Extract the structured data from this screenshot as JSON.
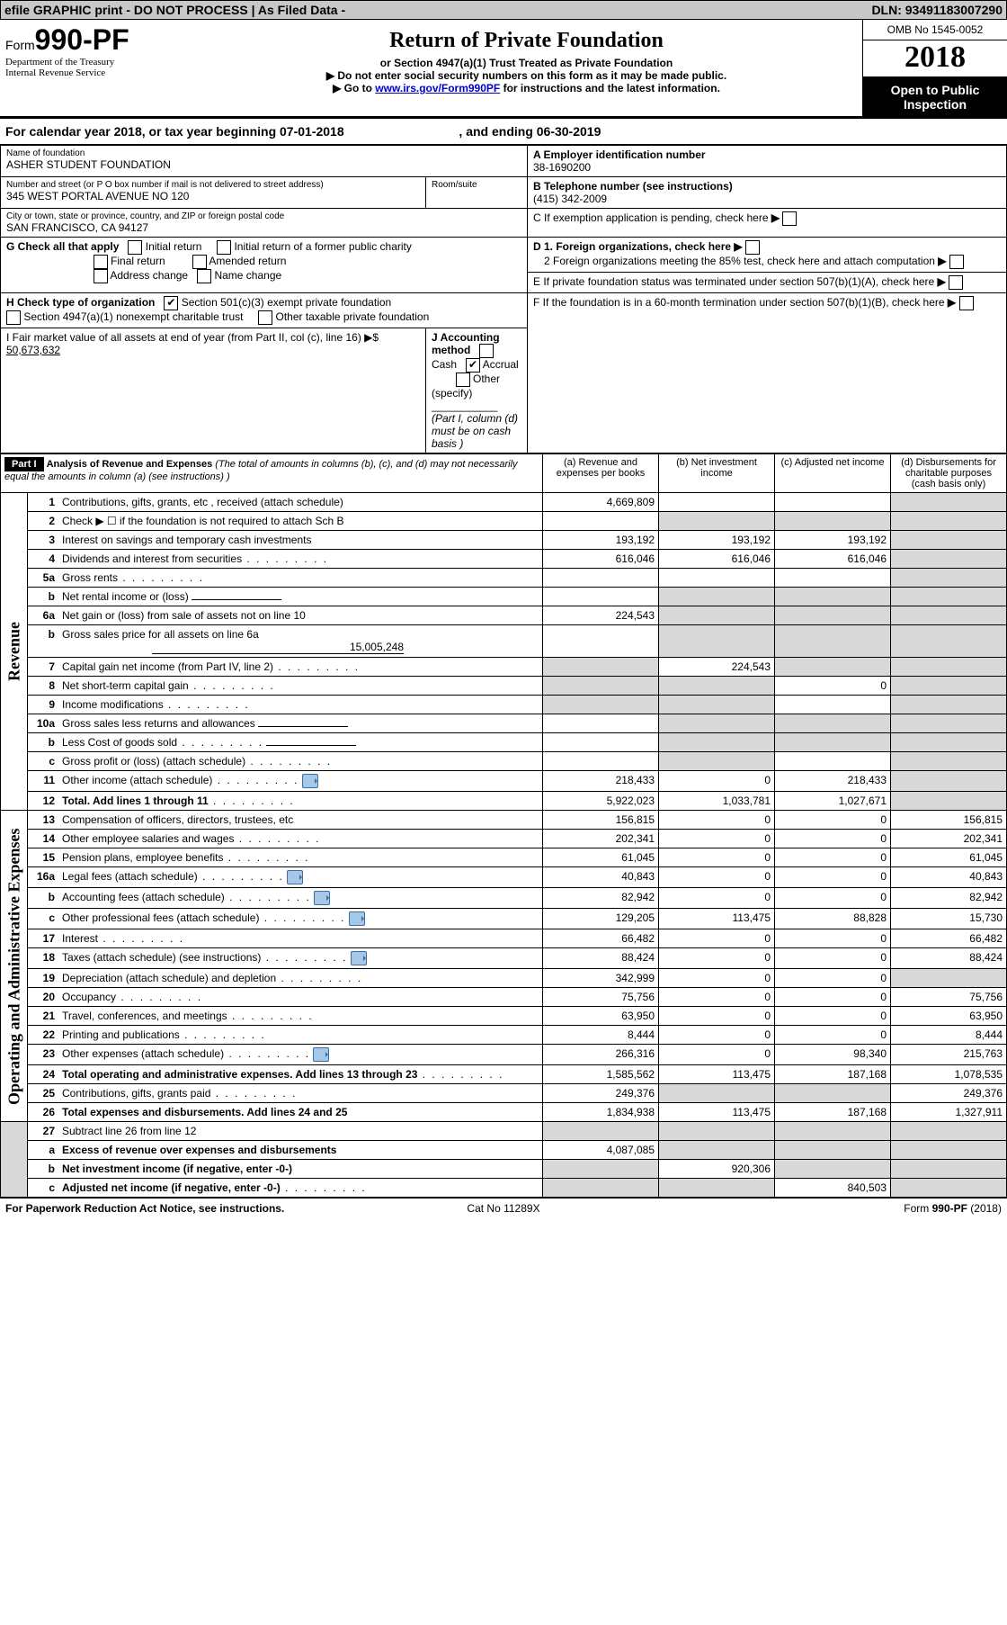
{
  "topbar": {
    "left": "efile GRAPHIC print - DO NOT PROCESS",
    "mid": "As Filed Data -",
    "dln_label": "DLN:",
    "dln": "93491183007290"
  },
  "header": {
    "form_prefix": "Form",
    "form_no": "990-PF",
    "dept1": "Department of the Treasury",
    "dept2": "Internal Revenue Service",
    "title": "Return of Private Foundation",
    "subtitle": "or Section 4947(a)(1) Trust Treated as Private Foundation",
    "note1": "▶ Do not enter social security numbers on this form as it may be made public.",
    "note2_pre": "▶ Go to ",
    "note2_link": "www.irs.gov/Form990PF",
    "note2_post": " for instructions and the latest information.",
    "omb": "OMB No 1545-0052",
    "year": "2018",
    "open1": "Open to Public",
    "open2": "Inspection"
  },
  "calendar": {
    "text_a": "For calendar year 2018, or tax year beginning 07-01-2018",
    "text_b": ", and ending 06-30-2019"
  },
  "entity": {
    "name_label": "Name of foundation",
    "name": "ASHER STUDENT FOUNDATION",
    "addr_label": "Number and street (or P O  box number if mail is not delivered to street address)",
    "room_label": "Room/suite",
    "addr": "345 WEST PORTAL AVENUE NO 120",
    "city_label": "City or town, state or province, country, and ZIP or foreign postal code",
    "city": "SAN FRANCISCO, CA  94127",
    "A_label": "A Employer identification number",
    "A_val": "38-1690200",
    "B_label": "B Telephone number (see instructions)",
    "B_val": "(415) 342-2009",
    "C_label": "C  If exemption application is pending, check here",
    "D1": "D 1. Foreign organizations, check here",
    "D2": "2  Foreign organizations meeting the 85% test, check here and attach computation",
    "E": "E  If private foundation status was terminated under section 507(b)(1)(A), check here",
    "F": "F  If the foundation is in a 60-month termination under section 507(b)(1)(B), check here",
    "G_label": "G Check all that apply",
    "G_opts": [
      "Initial return",
      "Initial return of a former public charity",
      "Final return",
      "Amended return",
      "Address change",
      "Name change"
    ],
    "H_label": "H Check type of organization",
    "H_a": "Section 501(c)(3) exempt private foundation",
    "H_b": "Section 4947(a)(1) nonexempt charitable trust",
    "H_c": "Other taxable private foundation",
    "I_label": "I Fair market value of all assets at end of year (from Part II, col  (c), line 16) ▶$",
    "I_val": "50,673,632",
    "J_label": "J Accounting method",
    "J_cash": "Cash",
    "J_accrual": "Accrual",
    "J_other": "Other (specify)",
    "J_note": "(Part I, column (d) must be on cash basis )"
  },
  "part1": {
    "label": "Part I",
    "title": "Analysis of Revenue and Expenses",
    "title_note": "(The total of amounts in columns (b), (c), and (d) may not necessarily equal the amounts in column (a) (see instructions) )",
    "cols": {
      "a": "(a)   Revenue and expenses per books",
      "b": "(b)   Net investment income",
      "c": "(c)   Adjusted net income",
      "d": "(d)   Disbursements for charitable purposes (cash basis only)"
    }
  },
  "sides": {
    "revenue": "Revenue",
    "expenses": "Operating and Administrative Expenses"
  },
  "rows": [
    {
      "n": "1",
      "d": "Contributions, gifts, grants, etc , received (attach schedule)",
      "a": "4,669,809",
      "b": "",
      "c": "",
      "d_shade": true
    },
    {
      "n": "2",
      "d": "Check ▶ ☐ if the foundation is not required to attach Sch  B",
      "no_vals": true,
      "d_shade": true
    },
    {
      "n": "3",
      "d": "Interest on savings and temporary cash investments",
      "a": "193,192",
      "b": "193,192",
      "c": "193,192",
      "d_shade": true
    },
    {
      "n": "4",
      "d": "Dividends and interest from securities",
      "a": "616,046",
      "b": "616,046",
      "c": "616,046",
      "d_shade": true,
      "dots": true
    },
    {
      "n": "5a",
      "d": "Gross rents",
      "a": "",
      "b": "",
      "c": "",
      "d_shade": true,
      "dots": true
    },
    {
      "n": "b",
      "d": "Net rental income or (loss)",
      "inline_blank": true,
      "rest_shade": true
    },
    {
      "n": "6a",
      "d": "Net gain or (loss) from sale of assets not on line 10",
      "a": "224,543",
      "rest_shade": true
    },
    {
      "n": "b",
      "d": "Gross sales price for all assets on line 6a",
      "inline_val": "15,005,248",
      "rest_shade": true
    },
    {
      "n": "7",
      "d": "Capital gain net income (from Part IV, line 2)",
      "a_shade": true,
      "b": "224,543",
      "c_shade": true,
      "d_shade": true,
      "dots": true
    },
    {
      "n": "8",
      "d": "Net short-term capital gain",
      "a_shade": true,
      "b_shade": true,
      "c": "0",
      "d_shade": true,
      "dots": true
    },
    {
      "n": "9",
      "d": "Income modifications",
      "a_shade": true,
      "b_shade": true,
      "c": "",
      "d_shade": true,
      "dots": true
    },
    {
      "n": "10a",
      "d": "Gross sales less returns and allowances",
      "inline_blank": true,
      "rest_shade": true
    },
    {
      "n": "b",
      "d": "Less  Cost of goods sold",
      "inline_blank": true,
      "rest_shade": true,
      "dots": true
    },
    {
      "n": "c",
      "d": "Gross profit or (loss) (attach schedule)",
      "a": "",
      "b_shade": true,
      "c": "",
      "d_shade": true,
      "dots": true
    },
    {
      "n": "11",
      "d": "Other income (attach schedule)",
      "icon": true,
      "a": "218,433",
      "b": "0",
      "c": "218,433",
      "d_shade": true,
      "dots": true
    },
    {
      "n": "12",
      "d": "Total. Add lines 1 through 11",
      "bold": true,
      "a": "5,922,023",
      "b": "1,033,781",
      "c": "1,027,671",
      "d_shade": true,
      "dots": true
    }
  ],
  "exp_rows": [
    {
      "n": "13",
      "d": "Compensation of officers, directors, trustees, etc",
      "a": "156,815",
      "b": "0",
      "c": "0",
      "dd": "156,815"
    },
    {
      "n": "14",
      "d": "Other employee salaries and wages",
      "a": "202,341",
      "b": "0",
      "c": "0",
      "dd": "202,341",
      "dots": true
    },
    {
      "n": "15",
      "d": "Pension plans, employee benefits",
      "a": "61,045",
      "b": "0",
      "c": "0",
      "dd": "61,045",
      "dots": true
    },
    {
      "n": "16a",
      "d": "Legal fees (attach schedule)",
      "icon": true,
      "a": "40,843",
      "b": "0",
      "c": "0",
      "dd": "40,843",
      "dots": true
    },
    {
      "n": "b",
      "d": "Accounting fees (attach schedule)",
      "icon": true,
      "a": "82,942",
      "b": "0",
      "c": "0",
      "dd": "82,942",
      "dots": true
    },
    {
      "n": "c",
      "d": "Other professional fees (attach schedule)",
      "icon": true,
      "a": "129,205",
      "b": "113,475",
      "c": "88,828",
      "dd": "15,730",
      "dots": true
    },
    {
      "n": "17",
      "d": "Interest",
      "a": "66,482",
      "b": "0",
      "c": "0",
      "dd": "66,482",
      "dots": true
    },
    {
      "n": "18",
      "d": "Taxes (attach schedule) (see instructions)",
      "icon": true,
      "a": "88,424",
      "b": "0",
      "c": "0",
      "dd": "88,424",
      "dots": true
    },
    {
      "n": "19",
      "d": "Depreciation (attach schedule) and depletion",
      "a": "342,999",
      "b": "0",
      "c": "0",
      "dd_shade": true,
      "dots": true
    },
    {
      "n": "20",
      "d": "Occupancy",
      "a": "75,756",
      "b": "0",
      "c": "0",
      "dd": "75,756",
      "dots": true
    },
    {
      "n": "21",
      "d": "Travel, conferences, and meetings",
      "a": "63,950",
      "b": "0",
      "c": "0",
      "dd": "63,950",
      "dots": true
    },
    {
      "n": "22",
      "d": "Printing and publications",
      "a": "8,444",
      "b": "0",
      "c": "0",
      "dd": "8,444",
      "dots": true
    },
    {
      "n": "23",
      "d": "Other expenses (attach schedule)",
      "icon": true,
      "a": "266,316",
      "b": "0",
      "c": "98,340",
      "dd": "215,763",
      "dots": true
    },
    {
      "n": "24",
      "d": "Total operating and administrative expenses. Add lines 13 through 23",
      "bold": true,
      "a": "1,585,562",
      "b": "113,475",
      "c": "187,168",
      "dd": "1,078,535",
      "dots": true
    },
    {
      "n": "25",
      "d": "Contributions, gifts, grants paid",
      "a": "249,376",
      "b_shade": true,
      "c_shade": true,
      "dd": "249,376",
      "dots": true
    },
    {
      "n": "26",
      "d": "Total expenses and disbursements. Add lines 24 and 25",
      "bold": true,
      "a": "1,834,938",
      "b": "113,475",
      "c": "187,168",
      "dd": "1,327,911"
    }
  ],
  "bottom_rows": [
    {
      "n": "27",
      "d": "Subtract line 26 from line 12",
      "all_shade": true
    },
    {
      "n": "a",
      "d": "Excess of revenue over expenses and disbursements",
      "bold": true,
      "a": "4,087,085",
      "rest_shade": true
    },
    {
      "n": "b",
      "d": "Net investment income (if negative, enter -0-)",
      "bold": true,
      "a_shade": true,
      "b": "920,306",
      "c_shade": true,
      "d_shade": true
    },
    {
      "n": "c",
      "d": "Adjusted net income (if negative, enter -0-)",
      "bold": true,
      "a_shade": true,
      "b_shade": true,
      "c": "840,503",
      "d_shade": true,
      "dots": true
    }
  ],
  "footer": {
    "left": "For Paperwork Reduction Act Notice, see instructions.",
    "center": "Cat  No  11289X",
    "right": "Form 990-PF (2018)"
  }
}
